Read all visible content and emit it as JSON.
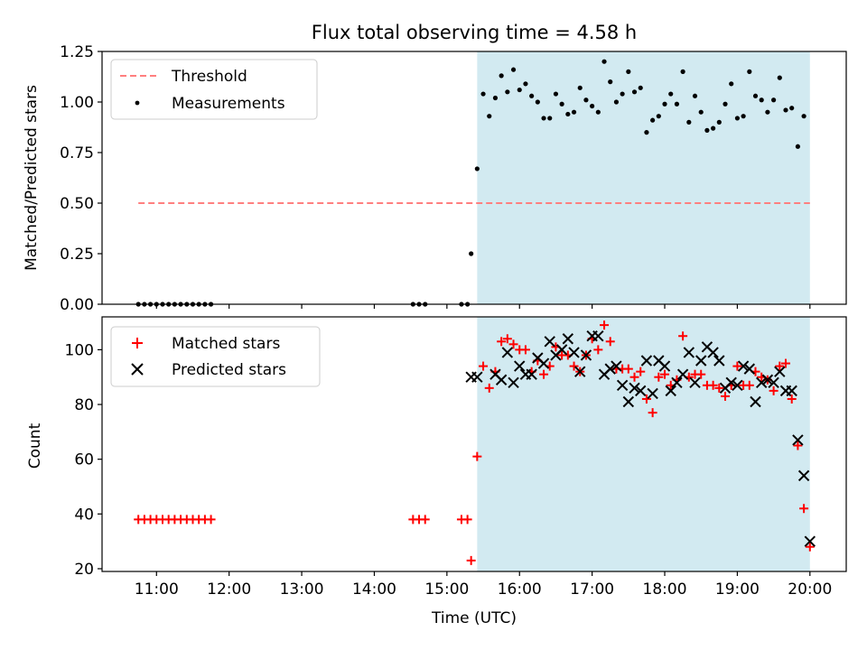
{
  "chart_data": [
    {
      "type": "scatter",
      "title": "Flux total observing time = 4.58 h",
      "ylabel": "Matched/Predicted stars",
      "xlabel": "",
      "ylim": [
        0,
        1.25
      ],
      "yticks": [
        "0.00",
        "0.25",
        "0.50",
        "0.75",
        "1.00",
        "1.25"
      ],
      "xlim": [
        "10:15",
        "20:30"
      ],
      "shaded_region": {
        "x_start": "15:25",
        "x_end": "20:00",
        "color": "#add8e6"
      },
      "legend_position": "top-left",
      "threshold": {
        "name": "Threshold",
        "value": 0.5,
        "x_start": "10:45",
        "x_end": "20:00",
        "color": "#ff7f7f"
      },
      "series": [
        {
          "name": "Measurements",
          "color": "#000000",
          "marker": "dot",
          "points": [
            [
              "10:45",
              0
            ],
            [
              "10:50",
              0
            ],
            [
              "10:55",
              0
            ],
            [
              "11:00",
              0
            ],
            [
              "11:05",
              0
            ],
            [
              "11:10",
              0
            ],
            [
              "11:15",
              0
            ],
            [
              "11:20",
              0
            ],
            [
              "11:25",
              0
            ],
            [
              "11:30",
              0
            ],
            [
              "11:35",
              0
            ],
            [
              "11:40",
              0
            ],
            [
              "11:45",
              0
            ],
            [
              "14:32",
              0
            ],
            [
              "14:37",
              0
            ],
            [
              "14:42",
              0
            ],
            [
              "15:12",
              0
            ],
            [
              "15:17",
              0
            ],
            [
              "15:20",
              0.25
            ],
            [
              "15:25",
              0.67
            ],
            [
              "15:30",
              1.04
            ],
            [
              "15:35",
              0.93
            ],
            [
              "15:40",
              1.02
            ],
            [
              "15:45",
              1.13
            ],
            [
              "15:50",
              1.05
            ],
            [
              "15:55",
              1.16
            ],
            [
              "16:00",
              1.06
            ],
            [
              "16:05",
              1.09
            ],
            [
              "16:10",
              1.03
            ],
            [
              "16:15",
              1.0
            ],
            [
              "16:20",
              0.92
            ],
            [
              "16:25",
              0.92
            ],
            [
              "16:30",
              1.04
            ],
            [
              "16:35",
              0.99
            ],
            [
              "16:40",
              0.94
            ],
            [
              "16:45",
              0.95
            ],
            [
              "16:50",
              1.07
            ],
            [
              "16:55",
              1.01
            ],
            [
              "17:00",
              0.98
            ],
            [
              "17:05",
              0.95
            ],
            [
              "17:10",
              1.2
            ],
            [
              "17:15",
              1.1
            ],
            [
              "17:20",
              1.0
            ],
            [
              "17:25",
              1.04
            ],
            [
              "17:30",
              1.15
            ],
            [
              "17:35",
              1.05
            ],
            [
              "17:40",
              1.07
            ],
            [
              "17:45",
              0.85
            ],
            [
              "17:50",
              0.91
            ],
            [
              "17:55",
              0.93
            ],
            [
              "18:00",
              0.99
            ],
            [
              "18:05",
              1.04
            ],
            [
              "18:10",
              0.99
            ],
            [
              "18:15",
              1.15
            ],
            [
              "18:20",
              0.9
            ],
            [
              "18:25",
              1.03
            ],
            [
              "18:30",
              0.95
            ],
            [
              "18:35",
              0.86
            ],
            [
              "18:40",
              0.87
            ],
            [
              "18:45",
              0.9
            ],
            [
              "18:50",
              0.99
            ],
            [
              "18:55",
              1.09
            ],
            [
              "19:00",
              0.92
            ],
            [
              "19:05",
              0.93
            ],
            [
              "19:10",
              1.15
            ],
            [
              "19:15",
              1.03
            ],
            [
              "19:20",
              1.01
            ],
            [
              "19:25",
              0.95
            ],
            [
              "19:30",
              1.01
            ],
            [
              "19:35",
              1.12
            ],
            [
              "19:40",
              0.96
            ],
            [
              "19:45",
              0.97
            ],
            [
              "19:50",
              0.78
            ],
            [
              "19:55",
              0.93
            ]
          ]
        }
      ]
    },
    {
      "type": "scatter",
      "title": "",
      "ylabel": "Count",
      "xlabel": "Time (UTC)",
      "ylim": [
        19,
        112
      ],
      "yticks": [
        "20",
        "40",
        "60",
        "80",
        "100"
      ],
      "xlim": [
        "10:15",
        "20:30"
      ],
      "xticks": [
        "11:00",
        "12:00",
        "13:00",
        "14:00",
        "15:00",
        "16:00",
        "17:00",
        "18:00",
        "19:00",
        "20:00"
      ],
      "shaded_region": {
        "x_start": "15:25",
        "x_end": "20:00",
        "color": "#add8e6"
      },
      "legend_position": "top-left",
      "series": [
        {
          "name": "Matched stars",
          "color": "#ff0000",
          "marker": "plus",
          "points": [
            [
              "10:45",
              38
            ],
            [
              "10:50",
              38
            ],
            [
              "10:55",
              38
            ],
            [
              "11:00",
              38
            ],
            [
              "11:05",
              38
            ],
            [
              "11:10",
              38
            ],
            [
              "11:15",
              38
            ],
            [
              "11:20",
              38
            ],
            [
              "11:25",
              38
            ],
            [
              "11:30",
              38
            ],
            [
              "11:35",
              38
            ],
            [
              "11:40",
              38
            ],
            [
              "11:45",
              38
            ],
            [
              "14:32",
              38
            ],
            [
              "14:37",
              38
            ],
            [
              "14:42",
              38
            ],
            [
              "15:12",
              38
            ],
            [
              "15:17",
              38
            ],
            [
              "15:20",
              23
            ],
            [
              "15:25",
              61
            ],
            [
              "15:30",
              94
            ],
            [
              "15:35",
              86
            ],
            [
              "15:40",
              92
            ],
            [
              "15:45",
              103
            ],
            [
              "15:50",
              104
            ],
            [
              "15:55",
              102
            ],
            [
              "16:00",
              100
            ],
            [
              "16:05",
              100
            ],
            [
              "16:10",
              92
            ],
            [
              "16:15",
              96
            ],
            [
              "16:20",
              91
            ],
            [
              "16:25",
              94
            ],
            [
              "16:30",
              101
            ],
            [
              "16:35",
              98
            ],
            [
              "16:40",
              98
            ],
            [
              "16:45",
              94
            ],
            [
              "16:50",
              92
            ],
            [
              "16:55",
              98
            ],
            [
              "17:00",
              104
            ],
            [
              "17:05",
              100
            ],
            [
              "17:10",
              109
            ],
            [
              "17:15",
              103
            ],
            [
              "17:20",
              93
            ],
            [
              "17:25",
              93
            ],
            [
              "17:30",
              93
            ],
            [
              "17:35",
              90
            ],
            [
              "17:40",
              92
            ],
            [
              "17:45",
              82
            ],
            [
              "17:50",
              77
            ],
            [
              "17:55",
              90
            ],
            [
              "18:00",
              91
            ],
            [
              "18:05",
              87
            ],
            [
              "18:10",
              89
            ],
            [
              "18:15",
              105
            ],
            [
              "18:20",
              90
            ],
            [
              "18:25",
              91
            ],
            [
              "18:30",
              91
            ],
            [
              "18:35",
              87
            ],
            [
              "18:40",
              87
            ],
            [
              "18:45",
              86
            ],
            [
              "18:50",
              83
            ],
            [
              "18:55",
              87
            ],
            [
              "19:00",
              94
            ],
            [
              "19:05",
              87
            ],
            [
              "19:10",
              87
            ],
            [
              "19:15",
              92
            ],
            [
              "19:20",
              90
            ],
            [
              "19:25",
              89
            ],
            [
              "19:30",
              85
            ],
            [
              "19:35",
              94
            ],
            [
              "19:40",
              95
            ],
            [
              "19:45",
              82
            ],
            [
              "19:50",
              65
            ],
            [
              "19:55",
              42
            ],
            [
              "20:00",
              28
            ]
          ]
        },
        {
          "name": "Predicted stars",
          "color": "#000000",
          "marker": "x",
          "points": [
            [
              "15:20",
              90
            ],
            [
              "15:25",
              90
            ],
            [
              "15:40",
              91
            ],
            [
              "15:45",
              89
            ],
            [
              "15:50",
              99
            ],
            [
              "15:55",
              88
            ],
            [
              "16:00",
              94
            ],
            [
              "16:05",
              91
            ],
            [
              "16:10",
              91
            ],
            [
              "16:15",
              97
            ],
            [
              "16:20",
              95
            ],
            [
              "16:25",
              103
            ],
            [
              "16:30",
              98
            ],
            [
              "16:35",
              100
            ],
            [
              "16:40",
              104
            ],
            [
              "16:45",
              99
            ],
            [
              "16:50",
              92
            ],
            [
              "16:55",
              98
            ],
            [
              "17:00",
              105
            ],
            [
              "17:05",
              105
            ],
            [
              "17:10",
              91
            ],
            [
              "17:15",
              93
            ],
            [
              "17:20",
              94
            ],
            [
              "17:25",
              87
            ],
            [
              "17:30",
              81
            ],
            [
              "17:35",
              86
            ],
            [
              "17:40",
              85
            ],
            [
              "17:45",
              96
            ],
            [
              "17:50",
              84
            ],
            [
              "17:55",
              96
            ],
            [
              "18:00",
              94
            ],
            [
              "18:05",
              85
            ],
            [
              "18:10",
              88
            ],
            [
              "18:15",
              91
            ],
            [
              "18:20",
              99
            ],
            [
              "18:25",
              88
            ],
            [
              "18:30",
              96
            ],
            [
              "18:35",
              101
            ],
            [
              "18:40",
              99
            ],
            [
              "18:45",
              96
            ],
            [
              "18:50",
              86
            ],
            [
              "18:55",
              88
            ],
            [
              "19:00",
              87
            ],
            [
              "19:05",
              94
            ],
            [
              "19:10",
              93
            ],
            [
              "19:15",
              81
            ],
            [
              "19:20",
              88
            ],
            [
              "19:25",
              89
            ],
            [
              "19:30",
              88
            ],
            [
              "19:35",
              92
            ],
            [
              "19:40",
              85
            ],
            [
              "19:45",
              85
            ],
            [
              "19:50",
              67
            ],
            [
              "19:55",
              54
            ],
            [
              "20:00",
              30
            ]
          ]
        }
      ]
    }
  ]
}
